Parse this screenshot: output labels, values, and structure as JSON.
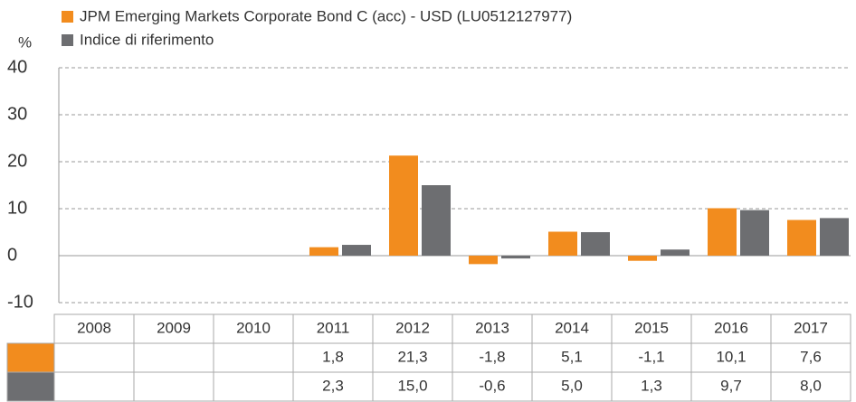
{
  "chart_data": {
    "type": "bar",
    "y_label": "%",
    "categories": [
      "2008",
      "2009",
      "2010",
      "2011",
      "2012",
      "2013",
      "2014",
      "2015",
      "2016",
      "2017"
    ],
    "series": [
      {
        "name": "JPM Emerging Markets Corporate Bond C (acc) - USD (LU0512127977)",
        "color": "#f28c1e",
        "values": [
          null,
          null,
          null,
          1.8,
          21.3,
          -1.8,
          5.1,
          -1.1,
          10.1,
          7.6
        ],
        "value_labels": [
          null,
          null,
          null,
          "1,8",
          "21,3",
          "-1,8",
          "5,1",
          "-1,1",
          "10,1",
          "7,6"
        ]
      },
      {
        "name": "Indice di riferimento",
        "color": "#6d6e71",
        "values": [
          null,
          null,
          null,
          2.3,
          15.0,
          -0.6,
          5.0,
          1.3,
          9.7,
          8.0
        ],
        "value_labels": [
          null,
          null,
          null,
          "2,3",
          "15,0",
          "-0,6",
          "5,0",
          "1,3",
          "9,7",
          "8,0"
        ]
      }
    ],
    "ylim": [
      -10,
      40
    ],
    "yticks": [
      40,
      30,
      20,
      10,
      0,
      -10
    ],
    "grid": true
  }
}
